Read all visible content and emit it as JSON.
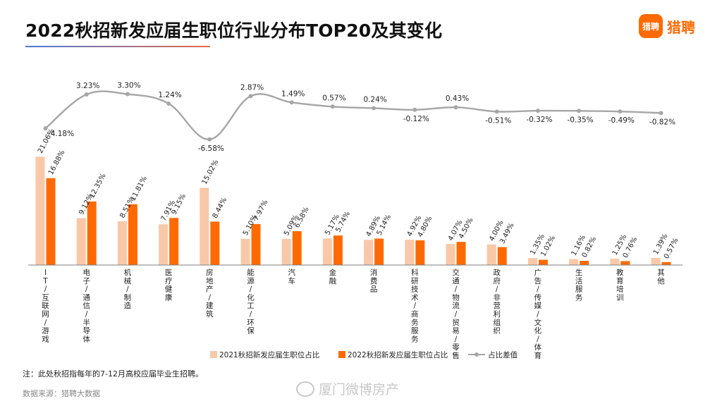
{
  "title": "2022秋招新发应届生职位行业分布TOP20及其变化",
  "logo": {
    "icon_text": "猎聘",
    "text": "猎聘"
  },
  "footnote": "注：此处秋招指每年的7-12月高校应届毕业生招聘。",
  "source": "数据来源：猎聘大数据",
  "watermark": "厦门微博房产",
  "colors": {
    "series_2021": "#f8c8a8",
    "series_2022": "#ff6a00",
    "line": "#a6a6a6",
    "accent": "#ff6a00"
  },
  "chart_data": {
    "type": "bar",
    "categories": [
      "IT/互联网/游戏",
      "电子/通信/半导体",
      "机械/制造",
      "医疗健康",
      "房地产/建筑",
      "能源/化工/环保",
      "汽车",
      "金融",
      "消费品",
      "科研技术/商务服务",
      "交通/物流/贸易/零售",
      "政府/非营利组织",
      "广告/传媒/文化/体育",
      "生活服务",
      "教育培训",
      "其他"
    ],
    "series": [
      {
        "name": "2021秋招新发应届生职位占比",
        "values": [
          21.06,
          9.12,
          8.51,
          7.91,
          15.02,
          5.1,
          5.09,
          5.17,
          4.89,
          4.92,
          4.07,
          4.0,
          1.35,
          1.16,
          1.25,
          1.39
        ],
        "labels": [
          "21.06%",
          "9.12%",
          "8.51%",
          "7.91%",
          "15.02%",
          "5.10%",
          "5.09%",
          "5.17%",
          "4.89%",
          "4.92%",
          "4.07%",
          "4.00%",
          "1.35%",
          "1.16%",
          "1.25%",
          "1.39%"
        ]
      },
      {
        "name": "2022秋招新发应届生职位占比",
        "values": [
          16.88,
          12.35,
          11.81,
          9.15,
          8.44,
          7.97,
          6.58,
          5.74,
          5.14,
          4.8,
          4.5,
          3.49,
          1.02,
          0.82,
          0.76,
          0.57
        ],
        "labels": [
          "16.88%",
          "12.35%",
          "11.81%",
          "9.15%",
          "8.44%",
          "7.97%",
          "6.58%",
          "5.74%",
          "5.14%",
          "4.80%",
          "4.50%",
          "3.49%",
          "1.02%",
          "0.82%",
          "0.76%",
          "0.57%"
        ]
      }
    ],
    "line": {
      "name": "占比差值",
      "values": [
        -4.18,
        3.23,
        3.3,
        1.24,
        -6.58,
        2.87,
        1.49,
        0.57,
        0.24,
        -0.12,
        0.43,
        -0.51,
        -0.32,
        -0.35,
        -0.49,
        -0.82
      ],
      "labels": [
        "-4.18%",
        "3.23%",
        "3.30%",
        "1.24%",
        "-6.58%",
        "2.87%",
        "1.49%",
        "0.57%",
        "0.24%",
        "-0.12%",
        "0.43%",
        "-0.51%",
        "-0.32%",
        "-0.35%",
        "-0.49%",
        "-0.82%"
      ]
    },
    "legend_position": "bottom",
    "grid": false
  }
}
